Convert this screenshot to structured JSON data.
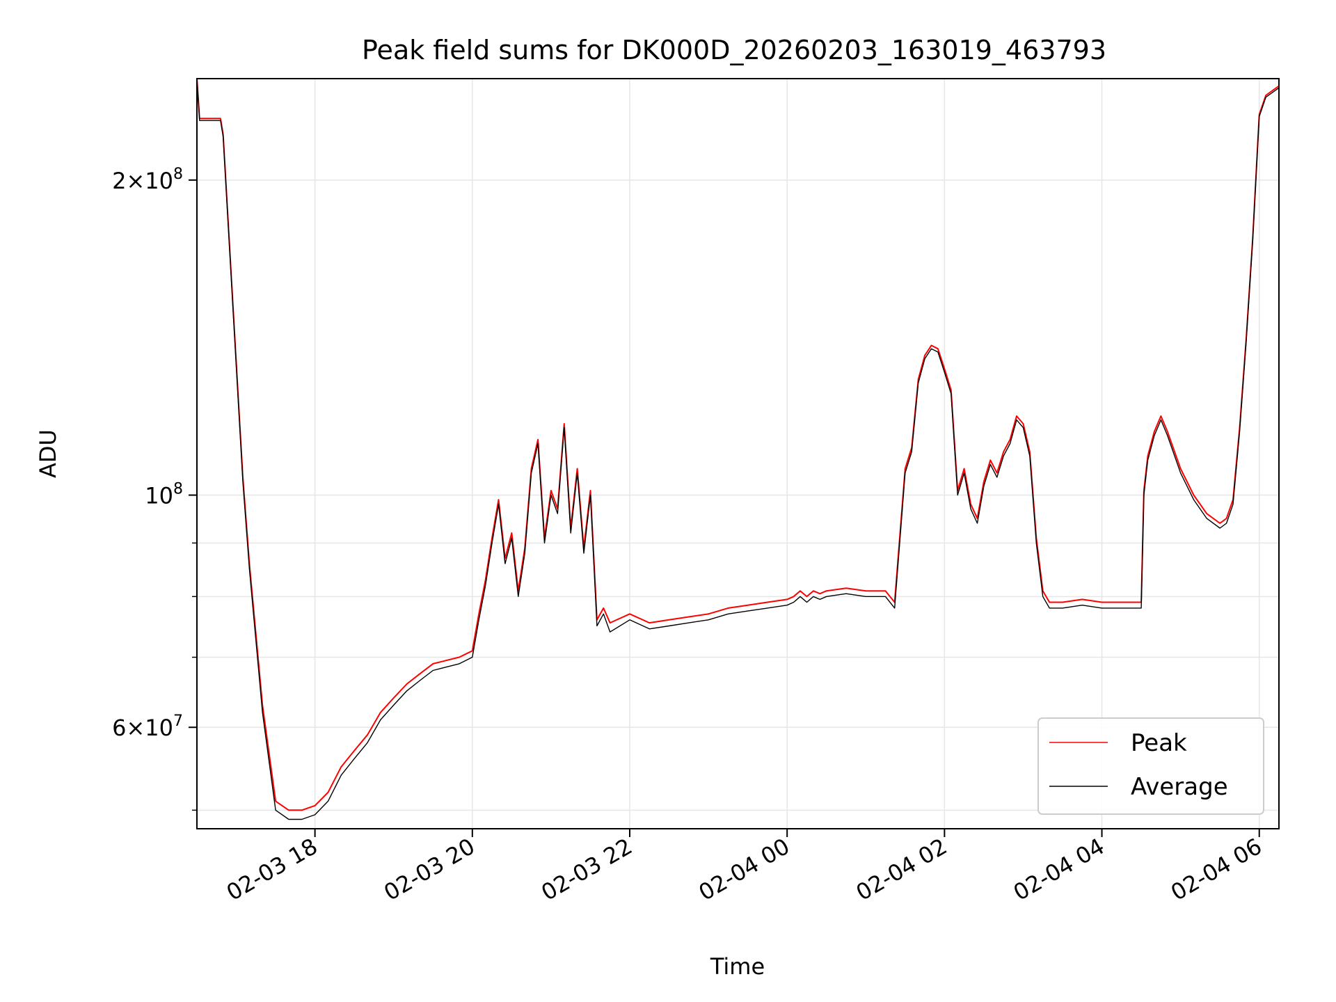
{
  "chart_data": {
    "type": "line",
    "title": "Peak field sums for DK000D_20260203_163019_463793",
    "xlabel": "Time",
    "ylabel": "ADU",
    "y_scale": "log",
    "xlim": [
      "2026-02-03 16:30",
      "2026-02-04 06:15"
    ],
    "ylim": [
      48000000,
      250000000
    ],
    "grid": true,
    "legend_position": "lower-right",
    "x_ticks": [
      {
        "value": "2026-02-03 18:00",
        "label": "02-03 18"
      },
      {
        "value": "2026-02-03 20:00",
        "label": "02-03 20"
      },
      {
        "value": "2026-02-03 22:00",
        "label": "02-03 22"
      },
      {
        "value": "2026-02-04 00:00",
        "label": "02-04 00"
      },
      {
        "value": "2026-02-04 02:00",
        "label": "02-04 02"
      },
      {
        "value": "2026-02-04 04:00",
        "label": "02-04 04"
      },
      {
        "value": "2026-02-04 06:00",
        "label": "02-04 06"
      }
    ],
    "y_ticks_major": [
      {
        "value": 60000000,
        "mantissa": "6",
        "exponent": "7"
      },
      {
        "value": 100000000,
        "mantissa": "",
        "exponent": "8"
      },
      {
        "value": 200000000,
        "mantissa": "2",
        "exponent": "8"
      }
    ],
    "y_ticks_minor": [
      50000000,
      70000000,
      80000000,
      90000000
    ],
    "series": [
      {
        "name": "Average",
        "color": "#000000",
        "x": [
          "2026-02-03 16:30",
          "2026-02-03 16:32",
          "2026-02-03 16:35",
          "2026-02-03 16:48",
          "2026-02-03 16:50",
          "2026-02-03 17:02",
          "2026-02-03 17:05",
          "2026-02-03 17:10",
          "2026-02-03 17:20",
          "2026-02-03 17:30",
          "2026-02-03 17:40",
          "2026-02-03 17:50",
          "2026-02-03 18:00",
          "2026-02-03 18:10",
          "2026-02-03 18:20",
          "2026-02-03 18:30",
          "2026-02-03 18:40",
          "2026-02-03 18:50",
          "2026-02-03 19:00",
          "2026-02-03 19:10",
          "2026-02-03 19:20",
          "2026-02-03 19:30",
          "2026-02-03 19:40",
          "2026-02-03 19:50",
          "2026-02-03 20:00",
          "2026-02-03 20:05",
          "2026-02-03 20:10",
          "2026-02-03 20:15",
          "2026-02-03 20:20",
          "2026-02-03 20:25",
          "2026-02-03 20:30",
          "2026-02-03 20:35",
          "2026-02-03 20:40",
          "2026-02-03 20:45",
          "2026-02-03 20:50",
          "2026-02-03 20:55",
          "2026-02-03 21:00",
          "2026-02-03 21:05",
          "2026-02-03 21:10",
          "2026-02-03 21:15",
          "2026-02-03 21:20",
          "2026-02-03 21:25",
          "2026-02-03 21:30",
          "2026-02-03 21:35",
          "2026-02-03 21:40",
          "2026-02-03 21:45",
          "2026-02-03 22:00",
          "2026-02-03 22:15",
          "2026-02-03 22:30",
          "2026-02-03 22:45",
          "2026-02-03 23:00",
          "2026-02-03 23:15",
          "2026-02-03 23:30",
          "2026-02-03 23:45",
          "2026-02-04 00:00",
          "2026-02-04 00:05",
          "2026-02-04 00:10",
          "2026-02-04 00:15",
          "2026-02-04 00:20",
          "2026-02-04 00:25",
          "2026-02-04 00:30",
          "2026-02-04 00:45",
          "2026-02-04 01:00",
          "2026-02-04 01:15",
          "2026-02-04 01:22",
          "2026-02-04 01:30",
          "2026-02-04 01:35",
          "2026-02-04 01:40",
          "2026-02-04 01:45",
          "2026-02-04 01:50",
          "2026-02-04 01:55",
          "2026-02-04 02:00",
          "2026-02-04 02:05",
          "2026-02-04 02:10",
          "2026-02-04 02:15",
          "2026-02-04 02:20",
          "2026-02-04 02:25",
          "2026-02-04 02:30",
          "2026-02-04 02:35",
          "2026-02-04 02:40",
          "2026-02-04 02:45",
          "2026-02-04 02:50",
          "2026-02-04 02:55",
          "2026-02-04 03:00",
          "2026-02-04 03:05",
          "2026-02-04 03:10",
          "2026-02-04 03:15",
          "2026-02-04 03:20",
          "2026-02-04 03:30",
          "2026-02-04 03:45",
          "2026-02-04 04:00",
          "2026-02-04 04:15",
          "2026-02-04 04:30",
          "2026-02-04 04:32",
          "2026-02-04 04:35",
          "2026-02-04 04:40",
          "2026-02-04 04:45",
          "2026-02-04 04:50",
          "2026-02-04 05:00",
          "2026-02-04 05:10",
          "2026-02-04 05:20",
          "2026-02-04 05:30",
          "2026-02-04 05:35",
          "2026-02-04 05:40",
          "2026-02-04 05:45",
          "2026-02-04 05:50",
          "2026-02-04 05:55",
          "2026-02-04 06:00",
          "2026-02-04 06:05",
          "2026-02-04 06:15"
        ],
        "y": [
          250000000,
          228000000,
          228000000,
          228000000,
          220000000,
          120000000,
          103000000,
          85000000,
          62000000,
          50000000,
          49000000,
          49000000,
          49500000,
          51000000,
          54000000,
          56000000,
          58000000,
          61000000,
          63000000,
          65000000,
          66500000,
          68000000,
          68500000,
          69000000,
          70000000,
          76000000,
          82000000,
          90000000,
          98000000,
          86000000,
          91000000,
          80000000,
          88000000,
          105000000,
          112000000,
          90000000,
          100000000,
          96000000,
          116000000,
          92000000,
          105000000,
          88000000,
          100000000,
          75000000,
          77000000,
          74000000,
          76000000,
          74500000,
          75000000,
          75500000,
          76000000,
          77000000,
          77500000,
          78000000,
          78500000,
          79000000,
          80000000,
          79000000,
          80000000,
          79500000,
          80000000,
          80500000,
          80000000,
          80000000,
          78000000,
          105000000,
          110000000,
          128000000,
          135000000,
          138000000,
          137000000,
          131000000,
          125000000,
          100000000,
          105000000,
          97000000,
          94000000,
          102000000,
          107000000,
          104000000,
          109000000,
          112000000,
          118000000,
          116000000,
          109000000,
          90000000,
          80000000,
          78000000,
          78000000,
          78500000,
          78000000,
          78000000,
          78000000,
          100000000,
          108000000,
          114000000,
          118000000,
          114000000,
          105000000,
          99000000,
          95000000,
          93000000,
          94000000,
          98000000,
          115000000,
          140000000,
          175000000,
          230000000,
          240000000,
          245000000
        ]
      },
      {
        "name": "Peak",
        "color": "#ff0000",
        "x": [
          "2026-02-03 16:30",
          "2026-02-03 16:32",
          "2026-02-03 16:35",
          "2026-02-03 16:48",
          "2026-02-03 16:50",
          "2026-02-03 17:02",
          "2026-02-03 17:05",
          "2026-02-03 17:10",
          "2026-02-03 17:20",
          "2026-02-03 17:30",
          "2026-02-03 17:40",
          "2026-02-03 17:50",
          "2026-02-03 18:00",
          "2026-02-03 18:10",
          "2026-02-03 18:20",
          "2026-02-03 18:30",
          "2026-02-03 18:40",
          "2026-02-03 18:50",
          "2026-02-03 19:00",
          "2026-02-03 19:10",
          "2026-02-03 19:20",
          "2026-02-03 19:30",
          "2026-02-03 19:40",
          "2026-02-03 19:50",
          "2026-02-03 20:00",
          "2026-02-03 20:05",
          "2026-02-03 20:10",
          "2026-02-03 20:15",
          "2026-02-03 20:20",
          "2026-02-03 20:25",
          "2026-02-03 20:30",
          "2026-02-03 20:35",
          "2026-02-03 20:40",
          "2026-02-03 20:45",
          "2026-02-03 20:50",
          "2026-02-03 20:55",
          "2026-02-03 21:00",
          "2026-02-03 21:05",
          "2026-02-03 21:10",
          "2026-02-03 21:15",
          "2026-02-03 21:20",
          "2026-02-03 21:25",
          "2026-02-03 21:30",
          "2026-02-03 21:35",
          "2026-02-03 21:40",
          "2026-02-03 21:45",
          "2026-02-03 22:00",
          "2026-02-03 22:15",
          "2026-02-03 22:30",
          "2026-02-03 22:45",
          "2026-02-03 23:00",
          "2026-02-03 23:15",
          "2026-02-03 23:30",
          "2026-02-03 23:45",
          "2026-02-04 00:00",
          "2026-02-04 00:05",
          "2026-02-04 00:10",
          "2026-02-04 00:15",
          "2026-02-04 00:20",
          "2026-02-04 00:25",
          "2026-02-04 00:30",
          "2026-02-04 00:45",
          "2026-02-04 01:00",
          "2026-02-04 01:15",
          "2026-02-04 01:22",
          "2026-02-04 01:30",
          "2026-02-04 01:35",
          "2026-02-04 01:40",
          "2026-02-04 01:45",
          "2026-02-04 01:50",
          "2026-02-04 01:55",
          "2026-02-04 02:00",
          "2026-02-04 02:05",
          "2026-02-04 02:10",
          "2026-02-04 02:15",
          "2026-02-04 02:20",
          "2026-02-04 02:25",
          "2026-02-04 02:30",
          "2026-02-04 02:35",
          "2026-02-04 02:40",
          "2026-02-04 02:45",
          "2026-02-04 02:50",
          "2026-02-04 02:55",
          "2026-02-04 03:00",
          "2026-02-04 03:05",
          "2026-02-04 03:10",
          "2026-02-04 03:15",
          "2026-02-04 03:20",
          "2026-02-04 03:30",
          "2026-02-04 03:45",
          "2026-02-04 04:00",
          "2026-02-04 04:15",
          "2026-02-04 04:30",
          "2026-02-04 04:32",
          "2026-02-04 04:35",
          "2026-02-04 04:40",
          "2026-02-04 04:45",
          "2026-02-04 04:50",
          "2026-02-04 05:00",
          "2026-02-04 05:10",
          "2026-02-04 05:20",
          "2026-02-04 05:30",
          "2026-02-04 05:35",
          "2026-02-04 05:40",
          "2026-02-04 05:45",
          "2026-02-04 05:50",
          "2026-02-04 05:55",
          "2026-02-04 06:00",
          "2026-02-04 06:05",
          "2026-02-04 06:15"
        ],
        "y": [
          250000000,
          229000000,
          229000000,
          229000000,
          221000000,
          121000000,
          104000000,
          86000000,
          63000000,
          51000000,
          50000000,
          50000000,
          50500000,
          52000000,
          55000000,
          57000000,
          59000000,
          62000000,
          64000000,
          66000000,
          67500000,
          69000000,
          69500000,
          70000000,
          71000000,
          77000000,
          83000000,
          91000000,
          99000000,
          87000000,
          92000000,
          81000000,
          89000000,
          106000000,
          113000000,
          91000000,
          101000000,
          97000000,
          117000000,
          93000000,
          106000000,
          89000000,
          101000000,
          76000000,
          78000000,
          75500000,
          77000000,
          75500000,
          76000000,
          76500000,
          77000000,
          78000000,
          78500000,
          79000000,
          79500000,
          80000000,
          81000000,
          80000000,
          81000000,
          80500000,
          81000000,
          81500000,
          81000000,
          81000000,
          79000000,
          106000000,
          111000000,
          129000000,
          136000000,
          139000000,
          138000000,
          132000000,
          126000000,
          101000000,
          106000000,
          98000000,
          95000000,
          103000000,
          108000000,
          105000000,
          110000000,
          113000000,
          119000000,
          117000000,
          110000000,
          91000000,
          81000000,
          79000000,
          79000000,
          79500000,
          79000000,
          79000000,
          79000000,
          101000000,
          109000000,
          115000000,
          119000000,
          115000000,
          106000000,
          100000000,
          96000000,
          94000000,
          95000000,
          99000000,
          116000000,
          141000000,
          176000000,
          231000000,
          241000000,
          246000000
        ]
      }
    ],
    "legend": [
      {
        "name": "Peak",
        "color": "#ff0000"
      },
      {
        "name": "Average",
        "color": "#000000"
      }
    ]
  }
}
